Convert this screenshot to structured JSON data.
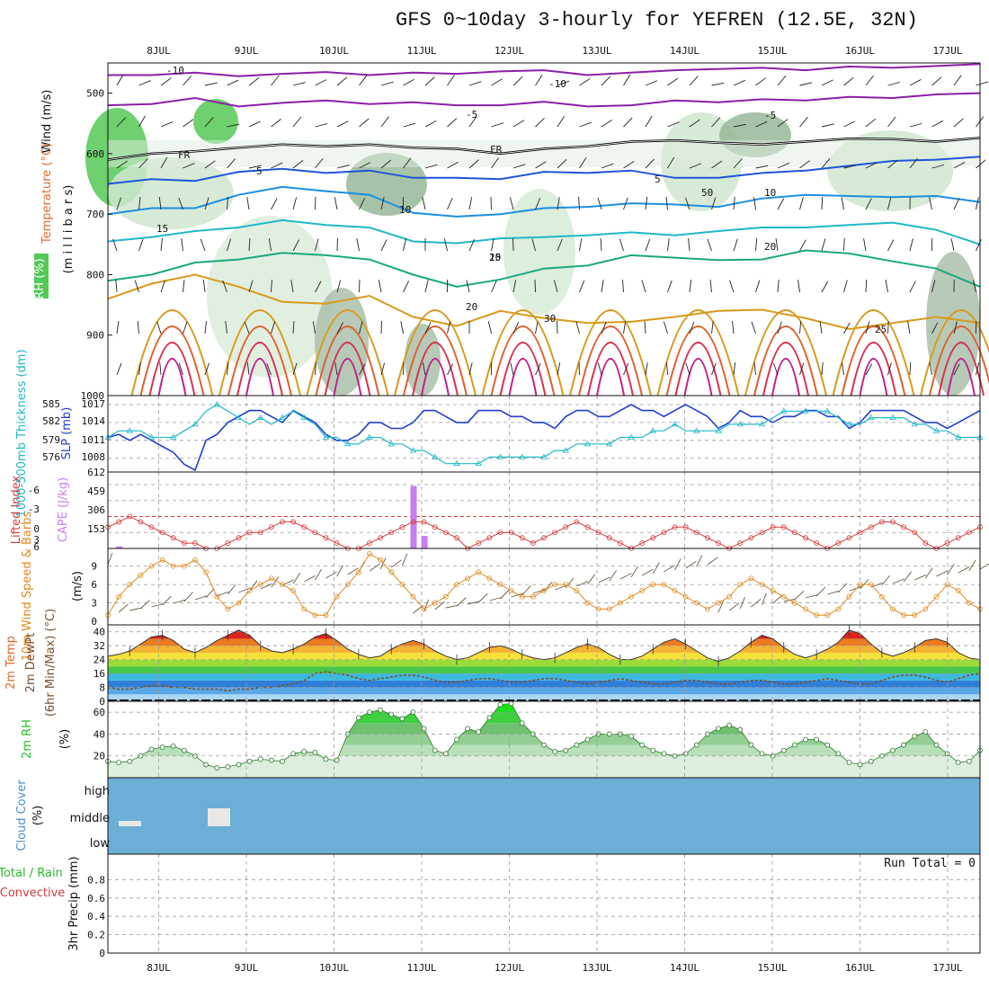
{
  "title": "GFS 0~10day 3-hourly for YEFREN (12.5E, 32N)",
  "x_axis": {
    "tick_labels": [
      "8JUL",
      "9JUL",
      "10JUL",
      "11JUL",
      "12JUL",
      "13JUL",
      "14JUL",
      "15JUL",
      "16JUL",
      "17JUL"
    ]
  },
  "chart_data": [
    {
      "id": "upper",
      "type": "heatmap",
      "labels": {
        "wind": "Wind (m/s)",
        "temperature": "Temperature (°C)",
        "rh": "RH (%)",
        "unit": "(m i l l i b a r s)"
      },
      "y_ticks": [
        "500",
        "600",
        "700",
        "800",
        "900",
        "1000"
      ],
      "ylim": [
        450,
        1000
      ],
      "y_reversed": true,
      "temperature_contours": [
        {
          "value": -10,
          "color": "#8b1fa8",
          "pressure": [
            470,
            470,
            466,
            472,
            468,
            465,
            470,
            466,
            468,
            464,
            462,
            470,
            466,
            462,
            460,
            458,
            462,
            456,
            458,
            455,
            452
          ]
        },
        {
          "value": -5,
          "color": "#8b1fa8",
          "pressure": [
            520,
            518,
            508,
            522,
            516,
            512,
            518,
            515,
            520,
            520,
            514,
            522,
            520,
            512,
            515,
            510,
            512,
            506,
            508,
            502,
            500
          ]
        },
        {
          "value": 0,
          "color": "#000000",
          "pressure": [
            610,
            600,
            596,
            590,
            585,
            588,
            585,
            590,
            592,
            600,
            592,
            588,
            580,
            578,
            582,
            585,
            580,
            575,
            576,
            580,
            574
          ]
        },
        {
          "value": 5,
          "color": "#1d55d8",
          "pressure": [
            650,
            642,
            645,
            630,
            625,
            632,
            628,
            640,
            640,
            642,
            630,
            632,
            628,
            640,
            640,
            632,
            628,
            620,
            612,
            610,
            605
          ]
        },
        {
          "value": 10,
          "color": "#1b8fe0",
          "pressure": [
            700,
            690,
            690,
            668,
            655,
            662,
            668,
            698,
            704,
            700,
            690,
            688,
            682,
            684,
            688,
            674,
            668,
            670,
            672,
            670,
            680
          ]
        },
        {
          "value": 15,
          "color": "#1fb8c8",
          "pressure": [
            745,
            738,
            728,
            722,
            710,
            718,
            722,
            745,
            748,
            740,
            738,
            735,
            730,
            735,
            728,
            722,
            722,
            718,
            714,
            726,
            750
          ]
        },
        {
          "value": 20,
          "color": "#1aa880",
          "pressure": [
            810,
            800,
            780,
            775,
            764,
            768,
            775,
            800,
            820,
            808,
            790,
            785,
            768,
            772,
            776,
            775,
            760,
            765,
            778,
            790,
            820
          ]
        },
        {
          "value": 25,
          "color": "#d89a1a",
          "pressure": [
            840,
            815,
            800,
            820,
            845,
            848,
            835,
            870,
            885,
            860,
            872,
            880,
            878,
            870,
            860,
            858,
            872,
            890,
            880,
            870,
            880
          ]
        }
      ],
      "contour_labels": [
        "-10",
        "-5",
        "FR",
        "5",
        "10",
        "15",
        "20",
        "25",
        "30",
        "50"
      ],
      "rh_bands": [
        50,
        70,
        90
      ]
    },
    {
      "id": "slp_thickness",
      "type": "line",
      "labels": {
        "left": "1000-500mb Thickness (dm)",
        "right": "SLP (mb)"
      },
      "left_ticks": [
        "585",
        "582",
        "579",
        "576"
      ],
      "right_ticks": [
        "1017",
        "1014",
        "1011",
        "1008"
      ],
      "series": [
        {
          "name": "SLP (mb)",
          "color": "#1f3fd1",
          "unit": "mb",
          "values": [
            1011.5,
            1012,
            1011,
            1012,
            1011,
            1010,
            1009,
            1007,
            1006,
            1011,
            1012,
            1014,
            1015,
            1016,
            1016,
            1015,
            1014,
            1016,
            1015,
            1014,
            1012,
            1011,
            1011,
            1012,
            1014,
            1014,
            1013,
            1013,
            1014,
            1016,
            1016,
            1015,
            1014,
            1014,
            1016,
            1016,
            1016,
            1015,
            1015,
            1014,
            1014,
            1013,
            1015,
            1016,
            1016,
            1015,
            1015,
            1016,
            1017,
            1016,
            1016,
            1015,
            1016,
            1017,
            1016,
            1015,
            1013,
            1014,
            1016,
            1015,
            1015,
            1014,
            1015,
            1015,
            1016,
            1016,
            1015,
            1015,
            1013,
            1014,
            1016,
            1016,
            1016,
            1016,
            1015,
            1014,
            1014,
            1013,
            1014,
            1015,
            1016
          ]
        },
        {
          "name": "1000-500mb Thickness (dm)",
          "color": "#1fb8c8",
          "unit": "dm",
          "values": [
            580,
            581,
            581,
            581,
            580,
            580,
            580,
            581,
            582,
            584,
            585,
            584,
            583,
            582,
            583,
            582,
            583,
            584,
            583,
            582,
            580,
            580,
            579,
            579,
            580,
            580,
            579,
            579,
            578,
            578,
            577,
            576,
            576,
            576,
            576,
            577,
            577,
            577,
            577,
            577,
            577,
            578,
            578,
            579,
            579,
            579,
            579,
            580,
            580,
            580,
            581,
            581,
            582,
            581,
            581,
            581,
            581,
            582,
            582,
            582,
            582,
            583,
            584,
            584,
            584,
            584,
            584,
            583,
            582,
            582,
            583,
            583,
            583,
            583,
            582,
            582,
            581,
            581,
            580,
            580,
            580
          ]
        }
      ]
    },
    {
      "id": "instability",
      "type": "bar",
      "labels": {
        "left": "Lifted Index",
        "right": "CAPE (J/kg)"
      },
      "left_ticks": [
        "-6",
        "-3",
        "0",
        "3",
        "6"
      ],
      "right_ticks": [
        "612",
        "459",
        "306",
        "153"
      ],
      "series": [
        {
          "name": "Lifted Index",
          "color": "#d63b3b",
          "values": [
            2,
            1,
            0,
            1,
            2,
            3,
            4,
            5,
            5,
            6,
            6,
            5,
            4,
            3,
            3,
            2,
            1,
            1,
            2,
            3,
            4,
            5,
            6,
            6,
            5,
            4,
            3,
            2,
            1,
            1,
            2,
            3,
            4,
            6,
            5,
            4,
            3,
            3,
            4,
            5,
            4,
            3,
            2,
            1,
            2,
            3,
            4,
            5,
            6,
            5,
            4,
            3,
            2,
            2,
            3,
            4,
            5,
            6,
            5,
            4,
            3,
            2,
            2,
            3,
            4,
            5,
            6,
            5,
            4,
            3,
            2,
            1,
            1,
            2,
            3,
            5,
            6,
            5,
            4,
            3,
            2
          ]
        },
        {
          "name": "CAPE (J/kg)",
          "color": "#c77ef0",
          "values": [
            0,
            20,
            0,
            0,
            0,
            0,
            0,
            0,
            10,
            0,
            0,
            0,
            0,
            0,
            0,
            0,
            0,
            0,
            0,
            0,
            0,
            0,
            0,
            0,
            0,
            0,
            0,
            0,
            600,
            120,
            0,
            0,
            0,
            0,
            0,
            0,
            0,
            0,
            0,
            0,
            0,
            0,
            0,
            0,
            0,
            0,
            0,
            0,
            0,
            0,
            0,
            0,
            0,
            0,
            0,
            0,
            0,
            0,
            0,
            0,
            0,
            0,
            0,
            0,
            0,
            0,
            0,
            0,
            0,
            0,
            0,
            0,
            0,
            0,
            0,
            0,
            0,
            0,
            0,
            0,
            0
          ]
        }
      ],
      "reference_line": 0
    },
    {
      "id": "wind10m",
      "type": "line",
      "labels": {
        "left": "10m Wind Speed & Barbs",
        "right": "(m/s)"
      },
      "y_ticks": [
        "9",
        "6",
        "3",
        "0"
      ],
      "ylim": [
        0,
        11
      ],
      "series": [
        {
          "name": "10m Wind Speed",
          "color": "#e08a1e",
          "values": [
            1,
            4,
            6,
            7.5,
            9,
            10,
            9,
            9,
            10,
            8,
            4,
            2,
            3,
            5,
            6,
            7,
            6,
            5,
            2,
            1,
            1,
            4,
            6,
            8,
            11,
            10,
            8,
            6,
            4,
            2,
            3,
            4,
            6,
            7,
            8,
            7,
            6,
            5,
            4,
            4,
            5,
            6,
            6,
            5,
            3,
            2,
            2,
            3,
            4,
            5,
            6,
            6,
            5,
            4,
            3,
            2,
            3,
            4,
            6,
            7,
            6,
            5,
            4,
            3,
            2,
            1,
            1,
            2,
            4,
            6,
            6,
            4,
            2,
            1,
            1,
            2,
            4,
            6,
            5,
            3,
            2
          ]
        }
      ]
    },
    {
      "id": "temp2m",
      "type": "area",
      "labels": {
        "left": "2m Temp",
        "mid": "2m DewPt",
        "right": "(6hr Min/Max) (°C)"
      },
      "y_ticks": [
        "40",
        "32",
        "24",
        "16",
        "8",
        "0"
      ],
      "ylim": [
        0,
        44
      ],
      "series": [
        {
          "name": "2m Temp",
          "color": "#333333",
          "values": [
            26,
            27,
            29,
            33,
            37,
            38,
            35,
            30,
            28,
            31,
            35,
            38,
            41,
            38,
            32,
            29,
            28,
            30,
            33,
            37,
            39,
            35,
            30,
            27,
            25,
            26,
            30,
            33,
            35,
            33,
            29,
            26,
            24,
            25,
            28,
            31,
            32,
            30,
            27,
            25,
            24,
            25,
            28,
            31,
            33,
            31,
            27,
            24,
            24,
            26,
            30,
            34,
            36,
            33,
            29,
            25,
            23,
            25,
            29,
            34,
            38,
            36,
            31,
            27,
            25,
            27,
            30,
            34,
            41,
            39,
            33,
            28,
            26,
            28,
            31,
            35,
            36,
            34,
            28,
            25,
            24
          ]
        },
        {
          "name": "2m DewPt",
          "color": "#7a4f2d",
          "values": [
            8,
            7,
            7,
            8,
            9,
            9,
            8,
            8,
            7,
            7,
            7,
            6,
            7,
            7,
            8,
            8,
            9,
            10,
            12,
            16,
            17,
            16,
            15,
            13,
            12,
            13,
            14,
            15,
            15,
            14,
            12,
            11,
            11,
            12,
            13,
            13,
            12,
            11,
            11,
            12,
            13,
            13,
            12,
            11,
            10,
            11,
            12,
            13,
            12,
            11,
            10,
            10,
            11,
            12,
            12,
            11,
            10,
            10,
            11,
            12,
            12,
            11,
            10,
            10,
            11,
            12,
            13,
            12,
            11,
            10,
            10,
            12,
            14,
            15,
            15,
            14,
            12,
            11,
            13,
            15,
            16
          ]
        }
      ]
    },
    {
      "id": "rh2m",
      "type": "area",
      "labels": {
        "left": "2m RH",
        "right": "(%)"
      },
      "y_ticks": [
        "60",
        "40",
        "20"
      ],
      "ylim": [
        0,
        70
      ],
      "series": [
        {
          "name": "2m RH",
          "color": "#2ab82a",
          "values": [
            15,
            14,
            15,
            20,
            26,
            28,
            29,
            25,
            20,
            12,
            9,
            10,
            12,
            15,
            17,
            16,
            15,
            22,
            24,
            23,
            17,
            16,
            40,
            55,
            60,
            62,
            58,
            54,
            60,
            45,
            25,
            22,
            35,
            45,
            42,
            55,
            67,
            68,
            50,
            40,
            30,
            24,
            25,
            30,
            35,
            40,
            40,
            40,
            38,
            30,
            25,
            22,
            20,
            22,
            30,
            40,
            45,
            48,
            44,
            30,
            22,
            20,
            25,
            30,
            35,
            35,
            30,
            22,
            14,
            12,
            15,
            20,
            25,
            30,
            38,
            42,
            30,
            22,
            14,
            15,
            25
          ]
        }
      ]
    },
    {
      "id": "cloud",
      "type": "area",
      "labels": {
        "left": "Cloud Cover",
        "right": "(%)"
      },
      "y_ticks": [
        "high",
        "middle",
        "low"
      ],
      "layers": [
        "high",
        "middle",
        "low"
      ]
    },
    {
      "id": "precip",
      "type": "bar",
      "labels": {
        "left": "3hr Precip (mm)",
        "total": "Total / Rain",
        "convective": "Convective"
      },
      "y_ticks": [
        "0.8",
        "0.6",
        "0.4",
        "0.2",
        "0"
      ],
      "ylim": [
        0,
        1
      ],
      "run_total": "Run Total = 0",
      "values": []
    }
  ]
}
